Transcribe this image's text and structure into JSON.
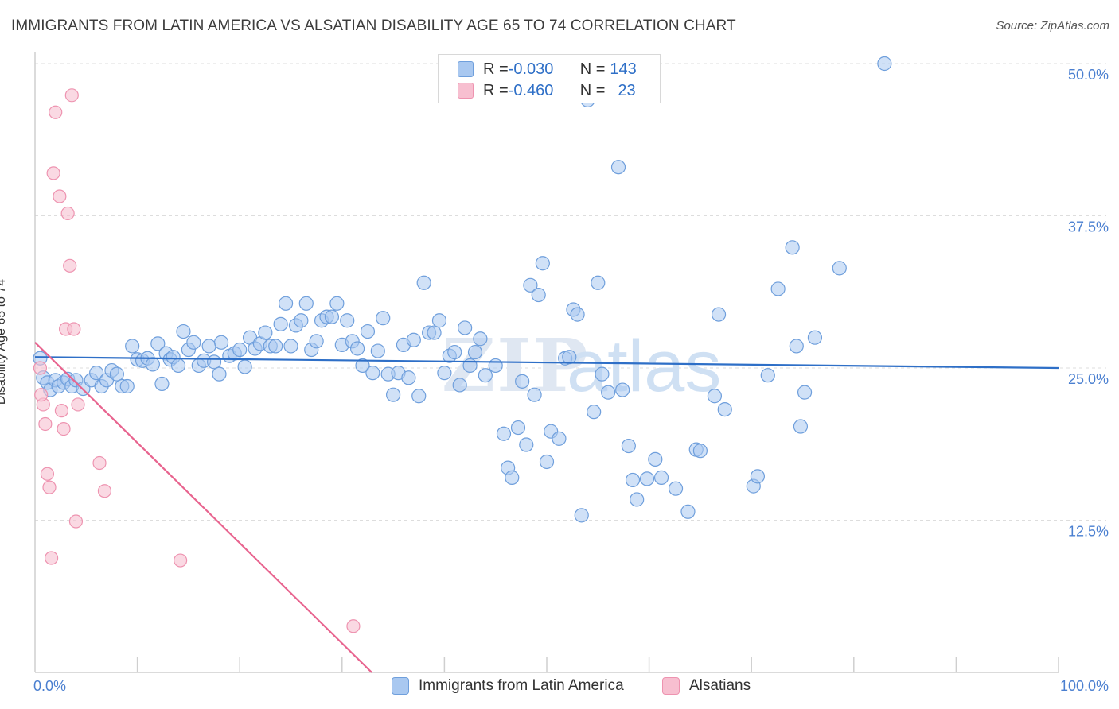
{
  "title": "IMMIGRANTS FROM LATIN AMERICA VS ALSATIAN DISABILITY AGE 65 TO 74 CORRELATION CHART",
  "source": "Source: ZipAtlas.com",
  "watermark": "ZIPatlas",
  "legend": {
    "rows": [
      {
        "r_label": "R = ",
        "r_value": "-0.030",
        "n_label": "N = ",
        "n_value": "143"
      },
      {
        "r_label": "R = ",
        "r_value": "-0.460",
        "n_label": "N = ",
        "n_value": "23"
      }
    ]
  },
  "colors": {
    "blue_fill": "#a9c8f0",
    "blue_stroke": "#6f9fdc",
    "blue_line": "#2e6fc7",
    "pink_fill": "#f7bfd0",
    "pink_stroke": "#ee93b0",
    "pink_line": "#e8648f",
    "axis_text": "#4a7fd0",
    "grid": "#dddddd"
  },
  "chart_data": {
    "type": "scatter",
    "title": "IMMIGRANTS FROM LATIN AMERICA VS ALSATIAN DISABILITY AGE 65 TO 74 CORRELATION CHART",
    "xlabel": "",
    "ylabel": "Disability Age 65 to 74",
    "xlim": [
      0,
      100
    ],
    "ylim": [
      0,
      50
    ],
    "x_ticks": [
      "0.0%",
      "100.0%"
    ],
    "y_ticks": [
      {
        "value": 12.5,
        "label": "12.5%"
      },
      {
        "value": 25.0,
        "label": "25.0%"
      },
      {
        "value": 37.5,
        "label": "37.5%"
      },
      {
        "value": 50.0,
        "label": "50.0%"
      }
    ],
    "grid": "horizontal dashed",
    "legend_position": "top-center",
    "series": [
      {
        "name": "Immigrants from Latin America",
        "R": -0.03,
        "N": 143,
        "trend": {
          "x0": 0,
          "y0": 25.9,
          "x1": 100,
          "y1": 25.0
        },
        "points": [
          [
            0.5,
            25.8
          ],
          [
            0.8,
            24.2
          ],
          [
            1.2,
            23.8
          ],
          [
            1.5,
            23.2
          ],
          [
            2.0,
            24.0
          ],
          [
            2.3,
            23.5
          ],
          [
            2.8,
            23.8
          ],
          [
            3.2,
            24.1
          ],
          [
            3.6,
            23.5
          ],
          [
            4.0,
            24.0
          ],
          [
            4.7,
            23.3
          ],
          [
            5.5,
            24.0
          ],
          [
            6.0,
            24.6
          ],
          [
            6.5,
            23.5
          ],
          [
            7.0,
            24.0
          ],
          [
            7.5,
            24.8
          ],
          [
            8.0,
            24.5
          ],
          [
            8.5,
            23.5
          ],
          [
            9.0,
            23.5
          ],
          [
            9.5,
            26.8
          ],
          [
            10.0,
            25.7
          ],
          [
            10.5,
            25.6
          ],
          [
            11.0,
            25.8
          ],
          [
            11.5,
            25.3
          ],
          [
            12.0,
            27.0
          ],
          [
            12.4,
            23.7
          ],
          [
            12.8,
            26.2
          ],
          [
            13.2,
            25.7
          ],
          [
            13.5,
            25.9
          ],
          [
            14.0,
            25.2
          ],
          [
            14.5,
            28.0
          ],
          [
            15.0,
            26.5
          ],
          [
            15.5,
            27.1
          ],
          [
            16.0,
            25.2
          ],
          [
            16.5,
            25.6
          ],
          [
            17.0,
            26.8
          ],
          [
            17.5,
            25.5
          ],
          [
            18.0,
            24.5
          ],
          [
            18.2,
            27.1
          ],
          [
            19.0,
            26.0
          ],
          [
            19.5,
            26.2
          ],
          [
            20.0,
            26.5
          ],
          [
            20.5,
            25.1
          ],
          [
            21.0,
            27.5
          ],
          [
            21.5,
            26.6
          ],
          [
            22.0,
            27.0
          ],
          [
            22.5,
            27.9
          ],
          [
            23.0,
            26.8
          ],
          [
            23.5,
            26.8
          ],
          [
            24.0,
            28.6
          ],
          [
            24.5,
            30.3
          ],
          [
            25.0,
            26.8
          ],
          [
            25.5,
            28.5
          ],
          [
            26.0,
            28.9
          ],
          [
            26.5,
            30.3
          ],
          [
            27.0,
            26.5
          ],
          [
            27.5,
            27.2
          ],
          [
            28.0,
            28.9
          ],
          [
            28.5,
            29.2
          ],
          [
            29.0,
            29.2
          ],
          [
            29.5,
            30.3
          ],
          [
            30.0,
            26.9
          ],
          [
            30.5,
            28.9
          ],
          [
            31.0,
            27.2
          ],
          [
            31.5,
            26.6
          ],
          [
            32.0,
            25.2
          ],
          [
            32.5,
            28.0
          ],
          [
            33.0,
            24.6
          ],
          [
            33.5,
            26.4
          ],
          [
            34.0,
            29.1
          ],
          [
            34.5,
            24.5
          ],
          [
            35.0,
            22.8
          ],
          [
            35.5,
            24.6
          ],
          [
            36.0,
            26.9
          ],
          [
            36.5,
            24.2
          ],
          [
            37.0,
            27.3
          ],
          [
            37.5,
            22.7
          ],
          [
            38.0,
            32.0
          ],
          [
            38.5,
            27.9
          ],
          [
            39.0,
            27.9
          ],
          [
            39.5,
            28.9
          ],
          [
            40.0,
            24.6
          ],
          [
            40.5,
            26.0
          ],
          [
            41.0,
            26.3
          ],
          [
            41.5,
            23.6
          ],
          [
            42.0,
            28.3
          ],
          [
            42.5,
            25.2
          ],
          [
            43.0,
            26.3
          ],
          [
            43.5,
            27.4
          ],
          [
            44.0,
            24.4
          ],
          [
            45.0,
            25.2
          ],
          [
            45.8,
            19.6
          ],
          [
            46.2,
            16.8
          ],
          [
            46.6,
            16.0
          ],
          [
            47.2,
            20.1
          ],
          [
            47.6,
            23.9
          ],
          [
            48.0,
            18.7
          ],
          [
            48.4,
            31.8
          ],
          [
            48.8,
            22.8
          ],
          [
            49.2,
            31.0
          ],
          [
            49.6,
            33.6
          ],
          [
            50.0,
            17.3
          ],
          [
            50.4,
            19.8
          ],
          [
            51.2,
            19.2
          ],
          [
            51.8,
            25.8
          ],
          [
            52.2,
            25.9
          ],
          [
            52.6,
            29.8
          ],
          [
            53.0,
            29.4
          ],
          [
            53.4,
            12.9
          ],
          [
            54.0,
            47.0
          ],
          [
            54.6,
            21.4
          ],
          [
            55.0,
            32.0
          ],
          [
            55.4,
            24.5
          ],
          [
            56.0,
            23.0
          ],
          [
            56.4,
            49.2
          ],
          [
            57.0,
            41.5
          ],
          [
            57.4,
            23.2
          ],
          [
            58.0,
            18.6
          ],
          [
            58.4,
            15.8
          ],
          [
            58.8,
            14.2
          ],
          [
            59.8,
            15.9
          ],
          [
            60.6,
            17.5
          ],
          [
            61.2,
            16.0
          ],
          [
            62.6,
            15.1
          ],
          [
            63.8,
            13.2
          ],
          [
            64.6,
            18.3
          ],
          [
            65.0,
            18.2
          ],
          [
            66.4,
            22.7
          ],
          [
            66.8,
            29.4
          ],
          [
            67.4,
            21.6
          ],
          [
            70.2,
            15.3
          ],
          [
            70.6,
            16.1
          ],
          [
            71.6,
            24.4
          ],
          [
            72.6,
            31.5
          ],
          [
            74.0,
            34.9
          ],
          [
            74.4,
            26.8
          ],
          [
            74.8,
            20.2
          ],
          [
            75.2,
            23.0
          ],
          [
            76.2,
            27.5
          ],
          [
            78.6,
            33.2
          ],
          [
            83.0,
            50.0
          ]
        ]
      },
      {
        "name": "Alsatians",
        "R": -0.46,
        "N": 23,
        "trend": {
          "x0": 0,
          "y0": 27.1,
          "x1": 32.9,
          "y1": 0
        },
        "points": [
          [
            0.8,
            22.0
          ],
          [
            1.0,
            20.4
          ],
          [
            1.2,
            16.3
          ],
          [
            1.4,
            15.2
          ],
          [
            1.6,
            9.4
          ],
          [
            1.8,
            41.0
          ],
          [
            2.0,
            46.0
          ],
          [
            2.4,
            39.1
          ],
          [
            2.6,
            21.5
          ],
          [
            2.8,
            20.0
          ],
          [
            3.0,
            28.2
          ],
          [
            3.2,
            37.7
          ],
          [
            3.4,
            33.4
          ],
          [
            3.6,
            47.4
          ],
          [
            3.8,
            28.2
          ],
          [
            4.0,
            12.4
          ],
          [
            4.2,
            22.0
          ],
          [
            6.3,
            17.2
          ],
          [
            6.8,
            14.9
          ],
          [
            14.2,
            9.2
          ],
          [
            31.1,
            3.8
          ],
          [
            0.5,
            25.0
          ],
          [
            0.6,
            22.8
          ]
        ]
      }
    ]
  },
  "bottom_legend": [
    {
      "label": "Immigrants from Latin America"
    },
    {
      "label": "Alsatians"
    }
  ]
}
